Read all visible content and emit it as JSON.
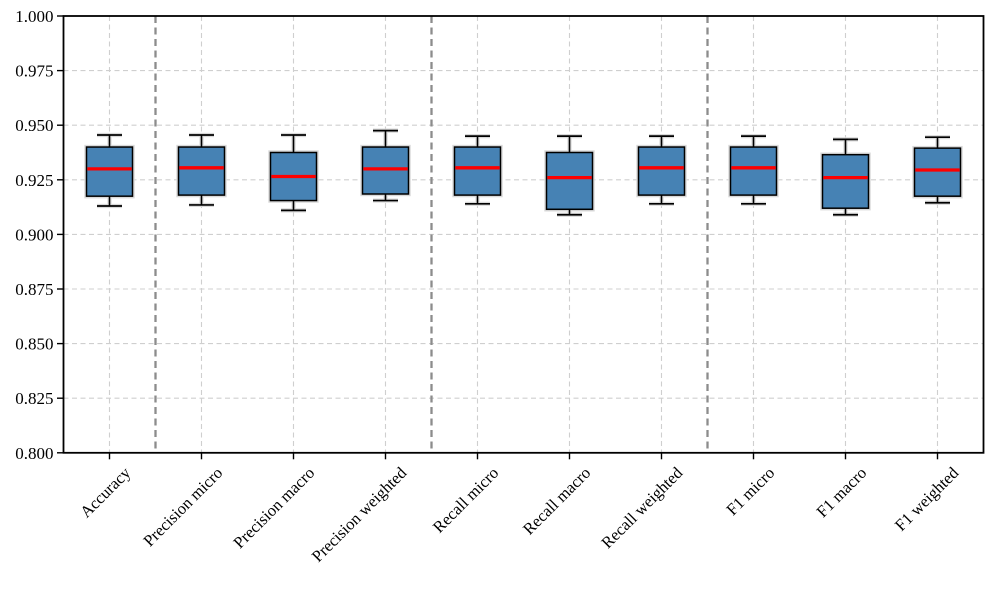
{
  "chart_data": {
    "type": "box",
    "title": "",
    "xlabel": "",
    "ylabel": "",
    "ylim": [
      0.8,
      1.0
    ],
    "ytick_values": [
      0.8,
      0.825,
      0.85,
      0.875,
      0.9,
      0.925,
      0.95,
      0.975,
      1.0
    ],
    "ytick_labels": [
      "0.800",
      "0.825",
      "0.850",
      "0.875",
      "0.900",
      "0.925",
      "0.950",
      "0.975",
      "1.000"
    ],
    "categories": [
      "Accuracy",
      "Precision micro",
      "Precision macro",
      "Precision weighted",
      "Recall micro",
      "Recall macro",
      "Recall weighted",
      "F1 micro",
      "F1 macro",
      "F1 weighted"
    ],
    "boxes": [
      {
        "label": "Accuracy",
        "whisker_low": 0.913,
        "q1": 0.9175,
        "median": 0.93,
        "q3": 0.94,
        "whisker_high": 0.9455
      },
      {
        "label": "Precision micro",
        "whisker_low": 0.9135,
        "q1": 0.918,
        "median": 0.9305,
        "q3": 0.94,
        "whisker_high": 0.9455
      },
      {
        "label": "Precision macro",
        "whisker_low": 0.911,
        "q1": 0.9155,
        "median": 0.9265,
        "q3": 0.9375,
        "whisker_high": 0.9455
      },
      {
        "label": "Precision weighted",
        "whisker_low": 0.9155,
        "q1": 0.9185,
        "median": 0.93,
        "q3": 0.94,
        "whisker_high": 0.9475
      },
      {
        "label": "Recall micro",
        "whisker_low": 0.914,
        "q1": 0.918,
        "median": 0.9305,
        "q3": 0.94,
        "whisker_high": 0.945
      },
      {
        "label": "Recall macro",
        "whisker_low": 0.909,
        "q1": 0.9115,
        "median": 0.926,
        "q3": 0.9375,
        "whisker_high": 0.945
      },
      {
        "label": "Recall weighted",
        "whisker_low": 0.914,
        "q1": 0.918,
        "median": 0.9305,
        "q3": 0.94,
        "whisker_high": 0.945
      },
      {
        "label": "F1 micro",
        "whisker_low": 0.914,
        "q1": 0.918,
        "median": 0.9305,
        "q3": 0.94,
        "whisker_high": 0.945
      },
      {
        "label": "F1 macro",
        "whisker_low": 0.909,
        "q1": 0.912,
        "median": 0.926,
        "q3": 0.9365,
        "whisker_high": 0.9435
      },
      {
        "label": "F1 weighted",
        "whisker_low": 0.9145,
        "q1": 0.9175,
        "median": 0.9295,
        "q3": 0.9395,
        "whisker_high": 0.9445
      }
    ],
    "group_separator_boundaries": [
      1,
      4,
      7
    ],
    "grid": {
      "horizontal": true,
      "vertical": true,
      "style": "dashed"
    },
    "legend": null,
    "colors": {
      "box_fill": "#4682b4",
      "box_edge": "#000000",
      "median": "#fe0000",
      "whisker": "#000000",
      "halo": "#d9d9d9",
      "grid_light": "#cfcfcf",
      "separator": "#8c8c8c",
      "axis": "#000000",
      "background": "#ffffff"
    }
  }
}
